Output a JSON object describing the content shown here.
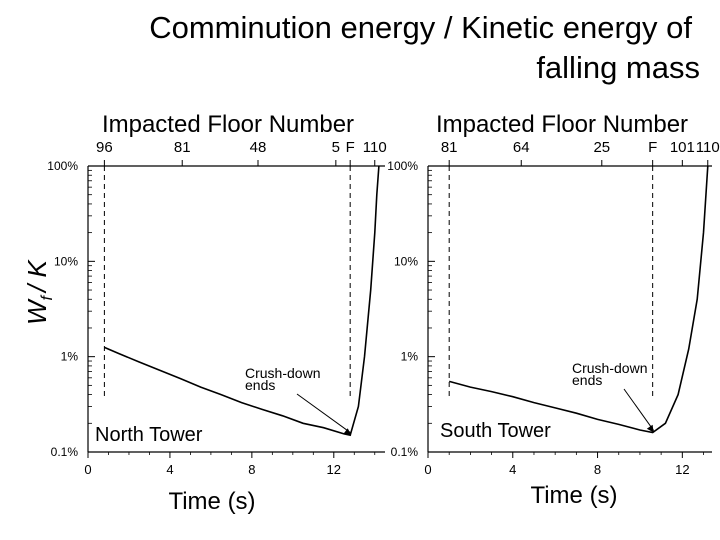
{
  "title": {
    "line1": "Comminution energy / Kinetic energy of",
    "line2": "falling mass"
  },
  "y_axis_label": "W_f / K",
  "y_axis_label_parts": {
    "main": "W",
    "sub": "f",
    "rest": "/ K"
  },
  "chart_data": [
    {
      "type": "line",
      "panel_name": "North Tower",
      "top_axis_title": "Impacted Floor Number",
      "top_ticks": [
        {
          "label": "96",
          "t": 0.8
        },
        {
          "label": "81",
          "t": 4.6
        },
        {
          "label": "48",
          "t": 8.3
        },
        {
          "label": "5",
          "t": 12.1
        },
        {
          "label": "F",
          "t": 12.8
        },
        {
          "label": "110",
          "t": 14.0
        }
      ],
      "xlabel": "Time (s)",
      "xlim": [
        0,
        14.5
      ],
      "x_ticks": [
        0,
        4,
        8,
        12
      ],
      "ylim": [
        0.1,
        100
      ],
      "y_scale": "log",
      "y_ticks": [
        {
          "value": 100,
          "label": "100%"
        },
        {
          "value": 10,
          "label": "10%"
        },
        {
          "value": 1,
          "label": "1%"
        },
        {
          "value": 0.1,
          "label": "0.1%"
        }
      ],
      "dashed_lines_x": [
        0.8,
        12.8
      ],
      "annotation": {
        "text_line1": "Crush-down",
        "text_line2": "ends",
        "points_to": {
          "x": 12.8,
          "y": 0.15
        }
      },
      "series": [
        {
          "x": [
            0.8,
            1.5,
            2.5,
            3.5,
            4.5,
            5.5,
            6.5,
            7.5,
            8.5,
            9.5,
            10.5,
            11.5,
            12.5,
            12.8,
            13.2,
            13.5,
            13.8,
            14.0,
            14.1,
            14.2
          ],
          "y": [
            1.25,
            1.08,
            0.88,
            0.72,
            0.59,
            0.48,
            0.4,
            0.33,
            0.28,
            0.24,
            0.2,
            0.18,
            0.155,
            0.15,
            0.3,
            1.0,
            5.0,
            20,
            50,
            100
          ]
        }
      ]
    },
    {
      "type": "line",
      "panel_name": "South Tower",
      "top_axis_title": "Impacted Floor Number",
      "top_ticks": [
        {
          "label": "81",
          "t": 1.0
        },
        {
          "label": "64",
          "t": 4.4
        },
        {
          "label": "25",
          "t": 8.2
        },
        {
          "label": "F",
          "t": 10.6
        },
        {
          "label": "101",
          "t": 12.0
        },
        {
          "label": "110",
          "t": 13.2
        }
      ],
      "xlabel": "Time (s)",
      "xlim": [
        0,
        13.4
      ],
      "x_ticks": [
        0,
        4,
        8,
        12
      ],
      "ylim": [
        0.1,
        100
      ],
      "y_scale": "log",
      "y_ticks": [
        {
          "value": 100,
          "label": "100%"
        },
        {
          "value": 10,
          "label": "10%"
        },
        {
          "value": 1,
          "label": "1%"
        },
        {
          "value": 0.1,
          "label": "0.1%"
        }
      ],
      "dashed_lines_x": [
        1.0,
        10.6
      ],
      "annotation": {
        "text_line1": "Crush-down",
        "text_line2": "ends",
        "points_to": {
          "x": 10.6,
          "y": 0.16
        }
      },
      "series": [
        {
          "x": [
            1.0,
            2.0,
            3.0,
            4.0,
            5.0,
            6.0,
            7.0,
            8.0,
            9.0,
            10.0,
            10.6,
            11.2,
            11.8,
            12.3,
            12.7,
            13.0,
            13.2
          ],
          "y": [
            0.55,
            0.48,
            0.43,
            0.38,
            0.33,
            0.29,
            0.255,
            0.22,
            0.195,
            0.17,
            0.16,
            0.2,
            0.4,
            1.2,
            4.0,
            20,
            100
          ]
        }
      ]
    }
  ]
}
